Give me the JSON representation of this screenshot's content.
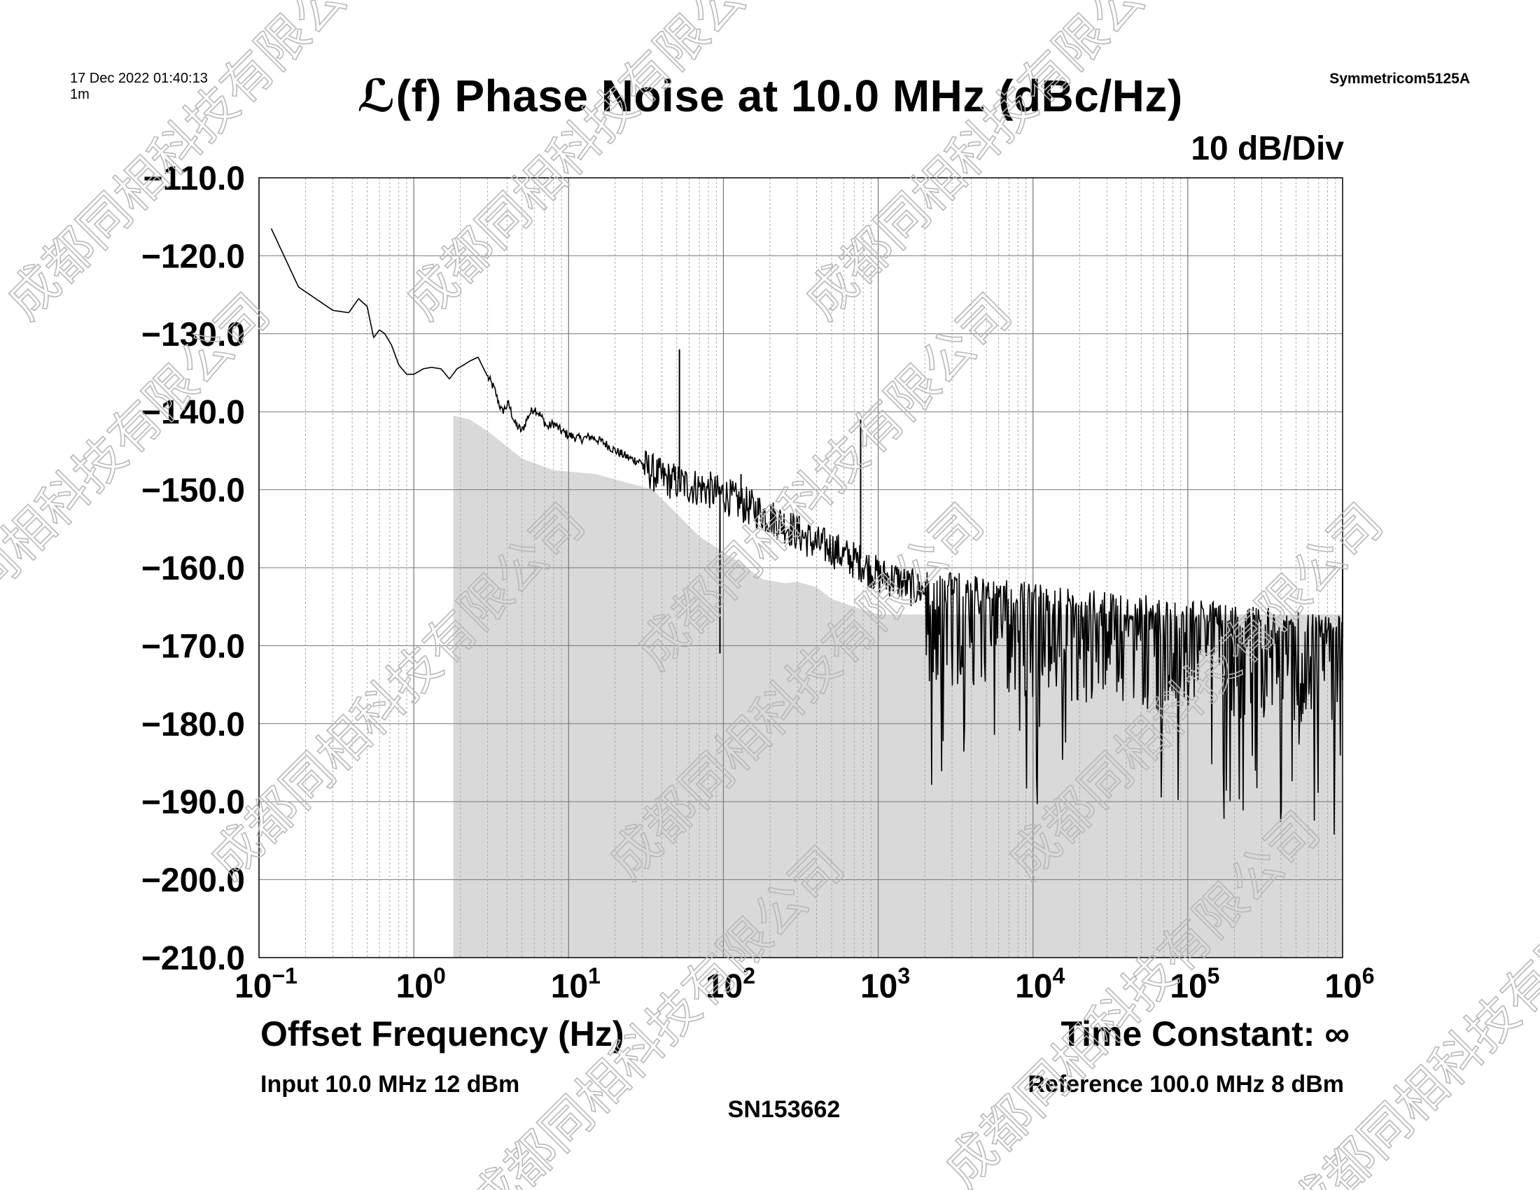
{
  "header": {
    "timestamp": "17 Dec 2022 01:40:13",
    "timespan": "1m",
    "instrument": "Symmetricom5125A",
    "scale": "10 dB/Div"
  },
  "footer": {
    "time_constant": "Time Constant: ∞",
    "input": "Input 10.0 MHz 12 dBm",
    "reference": "Reference 100.0 MHz 8 dBm",
    "serial": "SN153662"
  },
  "watermark": {
    "text": "成都同相科技有限公司"
  },
  "chart_data": {
    "type": "line",
    "title": "ℒ(f) Phase Noise at 10.0 MHz (dBc/Hz)",
    "xlabel": "Offset Frequency (Hz)",
    "ylabel": "",
    "xscale": "log",
    "xlim": [
      0.1,
      1000000
    ],
    "ylim": [
      -210,
      -110
    ],
    "grid": true,
    "ytick_labels": [
      "−110.0",
      "−120.0",
      "−130.0",
      "−140.0",
      "−150.0",
      "−160.0",
      "−170.0",
      "−180.0",
      "−190.0",
      "−200.0",
      "−210.0"
    ],
    "yticks": [
      -110,
      -120,
      -130,
      -140,
      -150,
      -160,
      -170,
      -180,
      -190,
      -200,
      -210
    ],
    "xtick_labels": [
      {
        "base": "10",
        "exp": "−1"
      },
      {
        "base": "10",
        "exp": "0"
      },
      {
        "base": "10",
        "exp": "1"
      },
      {
        "base": "10",
        "exp": "2"
      },
      {
        "base": "10",
        "exp": "3"
      },
      {
        "base": "10",
        "exp": "4"
      },
      {
        "base": "10",
        "exp": "5"
      },
      {
        "base": "10",
        "exp": "6"
      }
    ],
    "xticks": [
      0.1,
      1,
      10,
      100,
      1000,
      10000,
      100000,
      1000000
    ],
    "series": [
      {
        "role": "measured phase noise",
        "color": "#000000",
        "x": [
          0.12,
          0.18,
          0.3,
          0.38,
          0.44,
          0.5,
          0.55,
          0.6,
          0.65,
          0.72,
          0.8,
          0.9,
          1.0,
          1.15,
          1.3,
          1.5,
          1.7,
          1.9,
          2.1,
          2.3,
          2.6,
          3.0,
          3.3,
          3.7,
          4.1,
          4.5,
          5.0,
          5.5,
          6.0,
          6.6,
          7.3,
          8.0,
          9.0,
          10.0,
          12.0,
          14.0,
          17.0,
          20.0,
          25.0,
          30.0,
          40.0,
          50.0,
          60.0,
          70.0,
          80.0,
          90.0,
          100.0,
          120.0,
          150.0,
          200.0,
          250.0,
          300.0,
          400.0,
          500.0,
          600.0,
          800.0,
          1000.0,
          1300.0,
          1600.0,
          2000.0,
          3000.0,
          5000.0,
          10000.0,
          30000.0,
          100000.0,
          300000.0,
          1000000.0
        ],
        "y": [
          -116.5,
          -124.0,
          -127.0,
          -127.3,
          -125.5,
          -126.5,
          -130.5,
          -129.5,
          -130.0,
          -131.5,
          -134.0,
          -135.2,
          -135.2,
          -134.5,
          -134.3,
          -134.5,
          -135.8,
          -134.5,
          -134.0,
          -133.5,
          -133.0,
          -135.5,
          -137.0,
          -140.0,
          -139.0,
          -141.5,
          -142.5,
          -140.5,
          -139.5,
          -140.5,
          -142.0,
          -141.5,
          -142.5,
          -143.0,
          -143.5,
          -143.2,
          -144.0,
          -145.0,
          -146.0,
          -146.5,
          -148.0,
          -148.5,
          -149.0,
          -149.2,
          -149.5,
          -150.0,
          -150.0,
          -151.0,
          -151.8,
          -153.0,
          -154.0,
          -155.0,
          -156.5,
          -157.0,
          -158.0,
          -159.0,
          -160.5,
          -161.0,
          -162.0,
          -162.5,
          -163.5,
          -164.0,
          -165.0,
          -166.0,
          -167.0,
          -168.0,
          -169.0
        ],
        "spurs": [
          {
            "x": 52.0,
            "y": -132.0
          },
          {
            "x": 770.0,
            "y": -141.0
          },
          {
            "x": 130.0,
            "y": -148.0
          },
          {
            "x": 3000.0,
            "y": -161.5
          },
          {
            "x": 95.0,
            "y": -171.0
          },
          {
            "x": 1000000.0,
            "y": -160.0
          }
        ]
      },
      {
        "role": "noise floor (shaded)",
        "color": "#d9d9d9",
        "x": [
          1.8,
          2.3,
          3.0,
          5.0,
          8.0,
          15.0,
          35.0,
          70.0,
          120.0,
          180.0,
          250.0,
          300.0,
          400.0,
          500.0,
          700.0,
          1000.0,
          1000000.0
        ],
        "y": [
          -140.5,
          -141.0,
          -142.5,
          -146.0,
          -147.5,
          -148.0,
          -150.0,
          -156.0,
          -159.0,
          -161.5,
          -162.0,
          -161.8,
          -162.5,
          -164.0,
          -165.0,
          -166.0,
          -166.0
        ]
      }
    ]
  }
}
